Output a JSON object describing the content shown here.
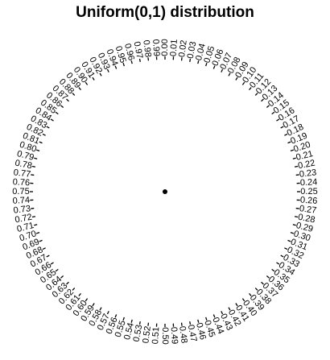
{
  "chart_data": {
    "type": "scatter",
    "subtype": "circular",
    "title": "Uniform(0,1) distribution",
    "xlabel": "",
    "ylabel": "",
    "tick_count": 100,
    "tick_labels": [
      "0.00",
      "0.01",
      "0.02",
      "0.03",
      "0.04",
      "0.05",
      "0.06",
      "0.07",
      "0.08",
      "0.09",
      "0.10",
      "0.11",
      "0.12",
      "0.13",
      "0.14",
      "0.15",
      "0.16",
      "0.17",
      "0.18",
      "0.19",
      "0.20",
      "0.21",
      "0.22",
      "0.23",
      "0.24",
      "0.25",
      "0.26",
      "0.27",
      "0.28",
      "0.29",
      "0.30",
      "0.31",
      "0.32",
      "0.33",
      "0.34",
      "0.35",
      "0.36",
      "0.37",
      "0.38",
      "0.39",
      "0.40",
      "0.41",
      "0.42",
      "0.43",
      "0.44",
      "0.45",
      "0.46",
      "0.47",
      "0.48",
      "0.49",
      "0.50",
      "0.51",
      "0.52",
      "0.53",
      "0.54",
      "0.55",
      "0.56",
      "0.57",
      "0.58",
      "0.59",
      "0.60",
      "0.61",
      "0.62",
      "0.63",
      "0.64",
      "0.65",
      "0.66",
      "0.67",
      "0.68",
      "0.69",
      "0.70",
      "0.71",
      "0.72",
      "0.73",
      "0.74",
      "0.75",
      "0.76",
      "0.77",
      "0.78",
      "0.79",
      "0.80",
      "0.81",
      "0.82",
      "0.83",
      "0.84",
      "0.85",
      "0.86",
      "0.87",
      "0.88",
      "0.89",
      "0.90",
      "0.91",
      "0.92",
      "0.93",
      "0.94",
      "0.95",
      "0.96",
      "0.97",
      "0.98",
      "0.99"
    ],
    "rotation": "clockwise",
    "zero": "top",
    "points": [
      0.5
    ],
    "grid": false,
    "legend": "none"
  }
}
